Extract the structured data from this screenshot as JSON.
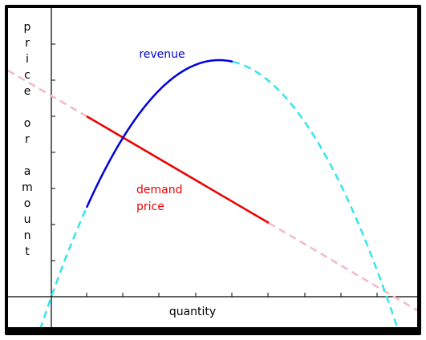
{
  "chart_data": {
    "type": "line",
    "ylabel_letters": [
      "p",
      "r",
      "i",
      "c",
      "e",
      "",
      "o",
      "r",
      "",
      "a",
      "m",
      "o",
      "u",
      "n",
      "t"
    ],
    "xlabel": "quantity",
    "colors": {
      "revenue": "#0000dd",
      "revenue_extension": "#33e6ee",
      "demand": "#ee0000",
      "demand_extension": "#f5b8c4",
      "axis": "#000000"
    },
    "series": [
      {
        "name": "revenue",
        "label_color": "#0000dd"
      },
      {
        "name": "demand price",
        "label_lines": [
          "demand",
          "price"
        ],
        "label_color": "#ee0000"
      }
    ],
    "grid": false
  }
}
